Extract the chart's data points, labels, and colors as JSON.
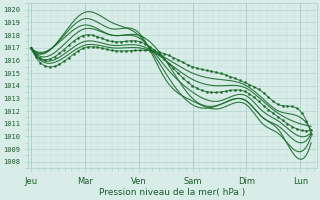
{
  "xlabel": "Pression niveau de la mer( hPa )",
  "ylim": [
    1007.5,
    1020.5
  ],
  "yticks": [
    1008,
    1009,
    1010,
    1011,
    1012,
    1013,
    1014,
    1015,
    1016,
    1017,
    1018,
    1019,
    1020
  ],
  "xtick_labels": [
    "Jeu",
    "Mar",
    "Ven",
    "Sam",
    "Dim",
    "Lun"
  ],
  "xtick_positions": [
    0,
    1,
    2,
    3,
    4,
    5
  ],
  "xlim": [
    -0.05,
    5.3
  ],
  "background_color": "#d9ede8",
  "grid_minor_color": "#c2ddd8",
  "grid_major_color": "#a8cfc8",
  "line_color": "#1a6b2a",
  "text_color": "#1a5c28",
  "curves": [
    {
      "x": [
        0,
        0.4,
        1.0,
        1.5,
        2.0,
        2.5,
        3.0,
        3.5,
        4.0,
        4.3,
        4.6,
        5.0,
        5.2
      ],
      "y": [
        1017,
        1017,
        1019.8,
        1019.0,
        1018.0,
        1015.0,
        1012.5,
        1012.5,
        1012.8,
        1011.5,
        1010.5,
        1008.2,
        1009.5
      ],
      "dotted": false
    },
    {
      "x": [
        0,
        0.4,
        1.0,
        1.5,
        2.0,
        2.5,
        3.0,
        3.5,
        4.0,
        4.3,
        4.6,
        5.0,
        5.2
      ],
      "y": [
        1017,
        1017,
        1019.3,
        1018.5,
        1018.2,
        1014.5,
        1012.8,
        1012.2,
        1012.5,
        1011.0,
        1010.2,
        1008.8,
        1010.0
      ],
      "dotted": false
    },
    {
      "x": [
        0,
        0.4,
        1.0,
        1.5,
        2.0,
        2.5,
        3.0,
        3.5,
        4.0,
        4.3,
        4.6,
        5.0,
        5.2
      ],
      "y": [
        1017,
        1017,
        1018.8,
        1018.0,
        1018.0,
        1016.0,
        1013.0,
        1012.5,
        1012.8,
        1011.5,
        1010.8,
        1009.5,
        1010.2
      ],
      "dotted": false
    },
    {
      "x": [
        0,
        0.4,
        1.0,
        1.5,
        2.0,
        2.5,
        3.0,
        3.5,
        4.0,
        4.3,
        4.6,
        5.0,
        5.2
      ],
      "y": [
        1017,
        1016.5,
        1018.5,
        1018.0,
        1017.8,
        1015.5,
        1013.5,
        1012.8,
        1013.2,
        1012.0,
        1011.2,
        1010.0,
        1010.3
      ],
      "dotted": false
    },
    {
      "x": [
        0,
        0.4,
        1.0,
        1.5,
        2.0,
        2.5,
        3.0,
        3.5,
        4.0,
        4.3,
        4.6,
        5.0,
        5.2
      ],
      "y": [
        1017,
        1016.2,
        1018.0,
        1017.5,
        1017.5,
        1016.0,
        1014.0,
        1013.5,
        1013.5,
        1012.5,
        1011.5,
        1010.5,
        1010.5
      ],
      "dotted": true
    },
    {
      "x": [
        0,
        0.4,
        1.0,
        1.5,
        2.0,
        2.5,
        3.0,
        3.5,
        4.0,
        4.3,
        4.6,
        5.0,
        5.2
      ],
      "y": [
        1017,
        1016.0,
        1017.5,
        1017.2,
        1017.2,
        1016.0,
        1014.5,
        1014.0,
        1013.8,
        1012.8,
        1011.8,
        1011.0,
        1010.8
      ],
      "dotted": false
    },
    {
      "x": [
        0,
        0.4,
        1.0,
        1.5,
        2.0,
        2.5,
        3.0,
        3.5,
        4.0,
        4.3,
        4.6,
        5.0,
        5.2
      ],
      "y": [
        1017,
        1015.8,
        1017.2,
        1017.0,
        1017.0,
        1016.2,
        1015.0,
        1014.5,
        1014.0,
        1013.0,
        1012.0,
        1011.5,
        1010.5
      ],
      "dotted": false
    },
    {
      "x": [
        0,
        0.4,
        1.0,
        1.5,
        2.0,
        2.5,
        3.0,
        3.5,
        4.0,
        4.3,
        4.6,
        5.0,
        5.2
      ],
      "y": [
        1017,
        1015.5,
        1017.0,
        1016.8,
        1016.8,
        1016.5,
        1015.5,
        1015.0,
        1014.2,
        1013.5,
        1012.5,
        1012.0,
        1010.2
      ],
      "dotted": true
    }
  ]
}
